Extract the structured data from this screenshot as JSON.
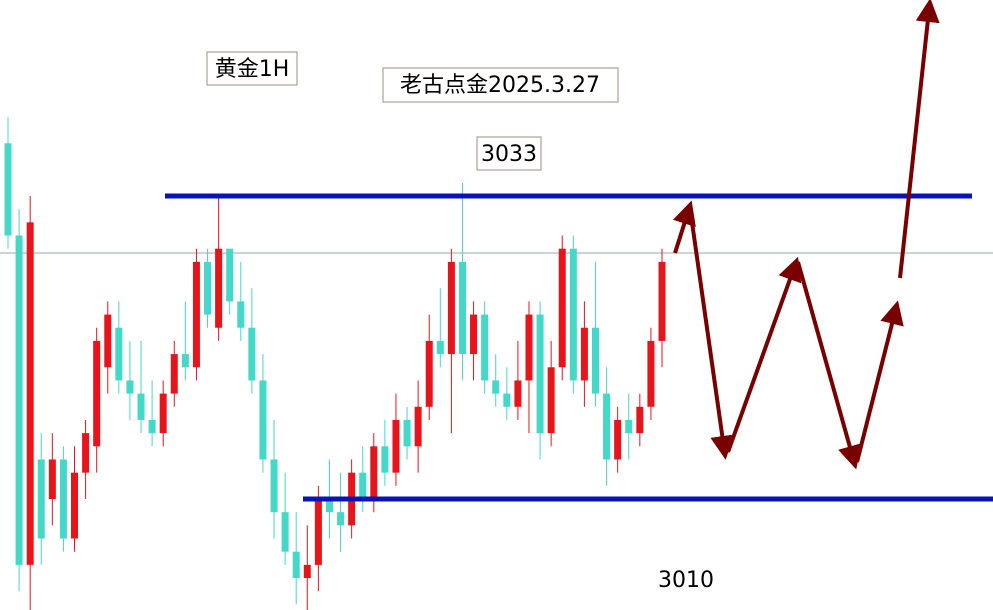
{
  "chart_data": {
    "type": "candlestick",
    "labels": [
      "黄金1H",
      "老古点金2025.3.27"
    ],
    "levels": [
      3033,
      3010
    ],
    "up_color": "#e8141c",
    "down_color": "#44d8c8",
    "level_color": "#0a14b4",
    "ohlc": [
      [
        3037,
        3039,
        3029,
        3030
      ],
      [
        3030,
        3032,
        3003,
        3005
      ],
      [
        3005,
        3033,
        3001,
        3031
      ],
      [
        3013,
        3015,
        3005,
        3007
      ],
      [
        3010,
        3015,
        3008,
        3013
      ],
      [
        3013,
        3014,
        3006,
        3007
      ],
      [
        3007,
        3014,
        3006,
        3012
      ],
      [
        3012,
        3016,
        3010,
        3015
      ],
      [
        3014,
        3023,
        3012,
        3022
      ],
      [
        3020,
        3025,
        3018,
        3024
      ],
      [
        3023,
        3025,
        3018,
        3019
      ],
      [
        3019,
        3022,
        3016,
        3018
      ],
      [
        3018,
        3022,
        3015,
        3016
      ],
      [
        3016,
        3019,
        3014,
        3015
      ],
      [
        3015,
        3019,
        3014,
        3018
      ],
      [
        3018,
        3022,
        3017,
        3021
      ],
      [
        3021,
        3025,
        3019,
        3020
      ],
      [
        3020,
        3029,
        3019,
        3028
      ],
      [
        3028,
        3029,
        3023,
        3024
      ],
      [
        3023,
        3033,
        3022,
        3029
      ],
      [
        3029,
        3029,
        3024,
        3025
      ],
      [
        3025,
        3028,
        3022,
        3023
      ],
      [
        3023,
        3026,
        3018,
        3019
      ],
      [
        3019,
        3021,
        3012,
        3013
      ],
      [
        3013,
        3016,
        3007,
        3009
      ],
      [
        3009,
        3012,
        3005,
        3006
      ],
      [
        3006,
        3009,
        3002,
        3004
      ],
      [
        3004,
        3008,
        3001,
        3005
      ],
      [
        3005,
        3011,
        3003,
        3010
      ],
      [
        3010,
        3013,
        3007,
        3009
      ],
      [
        3009,
        3012,
        3006,
        3008
      ],
      [
        3008,
        3013,
        3007,
        3012
      ],
      [
        3012,
        3014,
        3009,
        3010
      ],
      [
        3010,
        3015,
        3009,
        3014
      ],
      [
        3014,
        3016,
        3011,
        3012
      ],
      [
        3012,
        3018,
        3011,
        3016
      ],
      [
        3016,
        3017,
        3013,
        3014
      ],
      [
        3014,
        3019,
        3012,
        3017
      ],
      [
        3017,
        3024,
        3016,
        3022
      ],
      [
        3022,
        3026,
        3020,
        3021
      ],
      [
        3021,
        3029,
        3015,
        3028
      ],
      [
        3028,
        3034,
        3019,
        3021
      ],
      [
        3021,
        3025,
        3019,
        3024
      ],
      [
        3024,
        3025,
        3018,
        3019
      ],
      [
        3019,
        3021,
        3017,
        3018
      ],
      [
        3018,
        3020,
        3016,
        3017
      ],
      [
        3017,
        3022,
        3016,
        3019
      ],
      [
        3019,
        3025,
        3015,
        3024
      ],
      [
        3024,
        3025,
        3013,
        3015
      ],
      [
        3015,
        3022,
        3014,
        3020
      ],
      [
        3020,
        3030,
        3019,
        3029
      ],
      [
        3029,
        3030,
        3018,
        3019
      ],
      [
        3019,
        3025,
        3017,
        3023
      ],
      [
        3023,
        3028,
        3017,
        3018
      ],
      [
        3018,
        3020,
        3011,
        3013
      ],
      [
        3013,
        3017,
        3012,
        3016
      ],
      [
        3016,
        3018,
        3013,
        3015
      ],
      [
        3015,
        3018,
        3014,
        3017
      ],
      [
        3017,
        3023,
        3016,
        3022
      ],
      [
        3022,
        3029,
        3020,
        3028
      ]
    ]
  }
}
